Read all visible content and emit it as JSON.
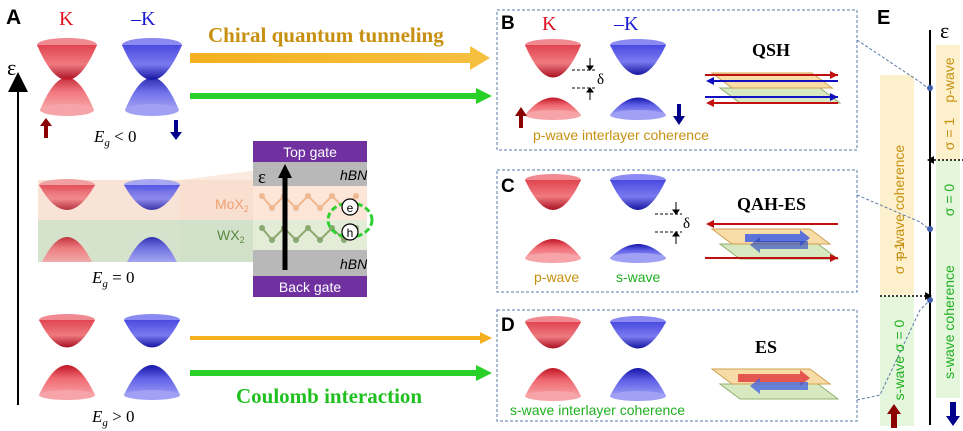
{
  "colors": {
    "k_red": "#e01020",
    "kprime_blue": "#1a1ad0",
    "gold_text": "#c89010",
    "green_text": "#20c020",
    "panel_border": "#5a7aa8",
    "purple_gate": "#7030a0",
    "spin_up": "#8b0000",
    "spin_down": "#00008b"
  },
  "panel_a": {
    "label": "A",
    "k_label": "K",
    "kprime_label": "–K",
    "energy_symbol": "ε",
    "eg_neg": {
      "main": "E",
      "sub": "g",
      "rest": " < 0"
    },
    "eg_zero": {
      "main": "E",
      "sub": "g",
      "rest": " = 0"
    },
    "eg_pos": {
      "main": "E",
      "sub": "g",
      "rest": " > 0"
    }
  },
  "arrows": {
    "chiral": "Chiral quantum tunneling",
    "coulomb": "Coulomb interaction"
  },
  "device": {
    "top_gate": "Top gate",
    "back_gate": "Back gate",
    "hbn_top": "hBN",
    "hbn_bottom": "hBN",
    "mox2": {
      "main": "MoX",
      "sub": "2"
    },
    "wx2": {
      "main": "WX",
      "sub": "2"
    },
    "electron": "e",
    "hole": "h",
    "energy_symbol": "ε"
  },
  "panel_b": {
    "label": "B",
    "k_label": "K",
    "kprime_label": "–K",
    "delta": "δ",
    "caption": "p-wave interlayer coherence",
    "phase": "QSH"
  },
  "panel_c": {
    "label": "C",
    "delta": "δ",
    "p_wave": "p-wave",
    "s_wave": "s-wave",
    "phase": "QAH-ES"
  },
  "panel_d": {
    "label": "D",
    "caption": "s-wave interlayer coherence",
    "phase": "ES"
  },
  "panel_e": {
    "label": "E",
    "energy_symbol": "ε",
    "p_wave_coherence": "p-wave  coherence",
    "s_wave_coherence": "s-wave  coherence",
    "sigma_one_a": "σ = 1",
    "sigma_one_b": "σ = 1",
    "sigma_zero": "σ = 0",
    "s_wave_sigma_zero": "s-wave σ = 0",
    "p_wave": "p-wave"
  }
}
